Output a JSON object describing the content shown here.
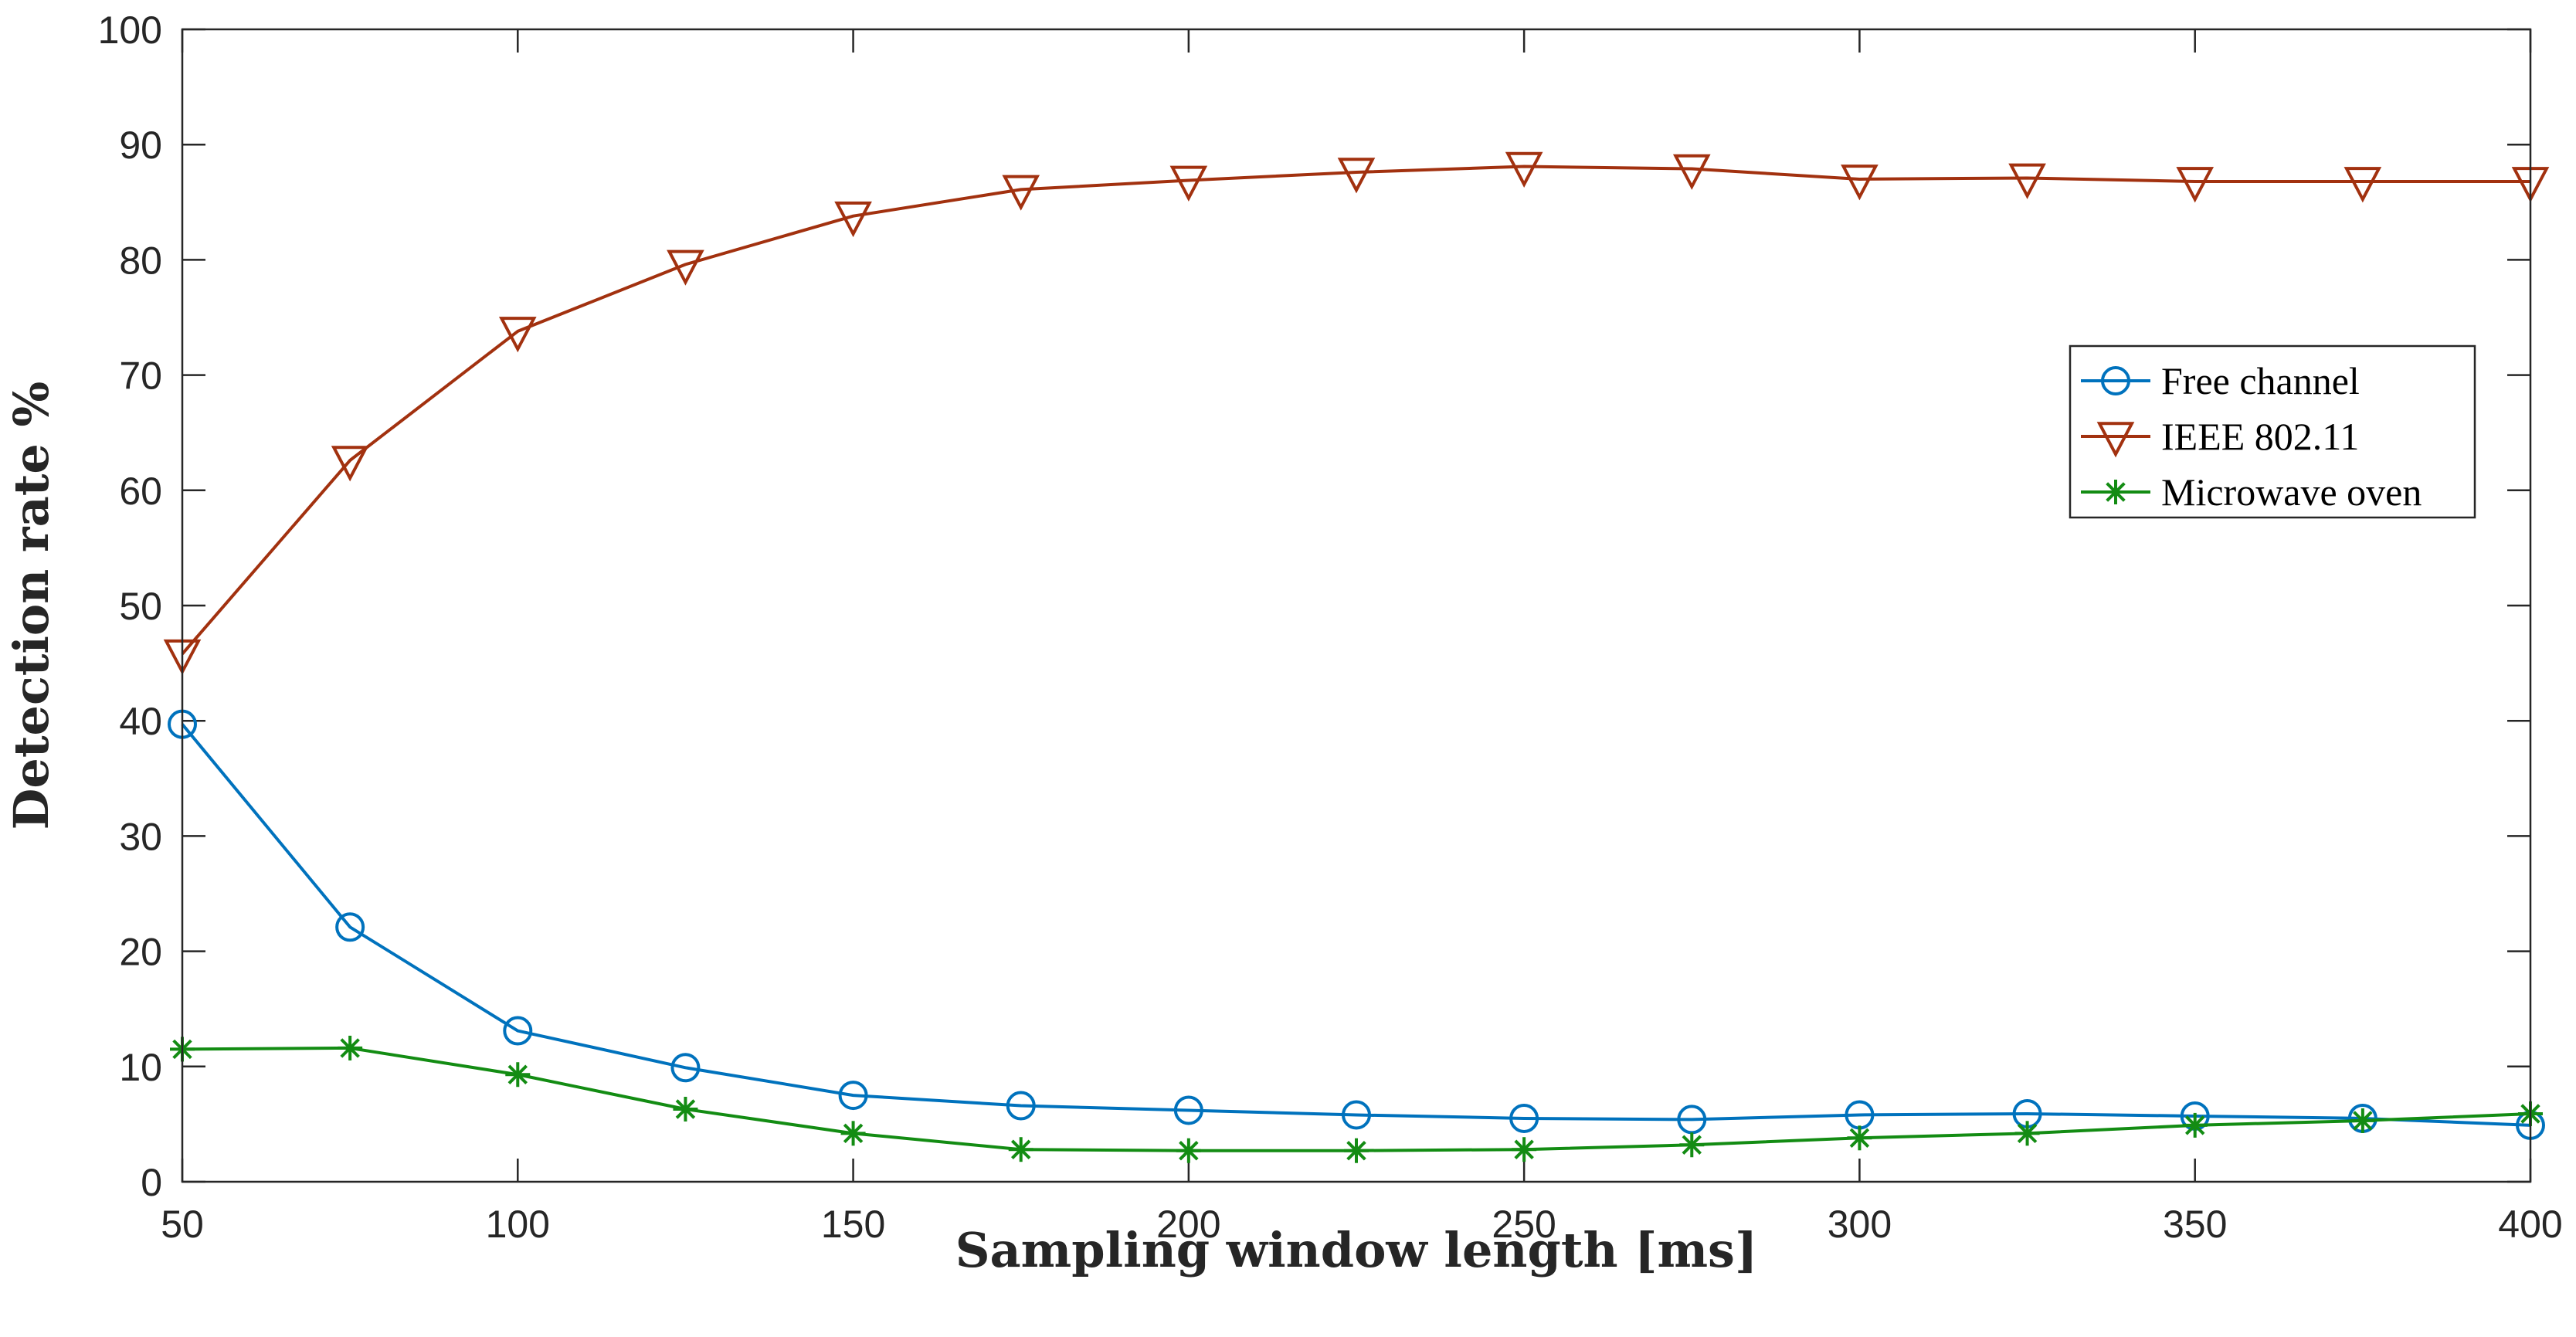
{
  "chart_data": {
    "type": "line",
    "title": "",
    "xlabel": "Sampling window length [ms]",
    "ylabel": "Detection rate %",
    "xlim": [
      50,
      400
    ],
    "ylim": [
      0,
      100
    ],
    "grid": false,
    "x": [
      50,
      75,
      100,
      125,
      150,
      175,
      200,
      225,
      250,
      275,
      300,
      325,
      350,
      375,
      400
    ],
    "xticks": [
      "50",
      "100",
      "150",
      "200",
      "250",
      "300",
      "350",
      "400"
    ],
    "yticks": [
      "0",
      "10",
      "20",
      "30",
      "40",
      "50",
      "60",
      "70",
      "80",
      "90",
      "100"
    ],
    "legend_position": "top-right",
    "series": [
      {
        "name": "Free channel",
        "color": "#0072BD",
        "marker": "circle",
        "values": [
          39.7,
          22.1,
          13.1,
          9.9,
          7.5,
          6.6,
          6.2,
          5.8,
          5.5,
          5.4,
          5.8,
          5.9,
          5.7,
          5.5,
          4.9
        ]
      },
      {
        "name": "IEEE 802.11",
        "color": "#A2310F",
        "marker": "triangle-down",
        "values": [
          45.8,
          62.6,
          73.8,
          79.6,
          83.8,
          86.1,
          86.9,
          87.6,
          88.1,
          87.9,
          87.0,
          87.1,
          86.8,
          86.8,
          86.8
        ]
      },
      {
        "name": "Microwave oven",
        "color": "#138C13",
        "marker": "asterisk",
        "values": [
          11.5,
          11.6,
          9.3,
          6.3,
          4.2,
          2.8,
          2.7,
          2.7,
          2.8,
          3.2,
          3.8,
          4.2,
          4.9,
          5.3,
          5.9
        ]
      }
    ]
  }
}
